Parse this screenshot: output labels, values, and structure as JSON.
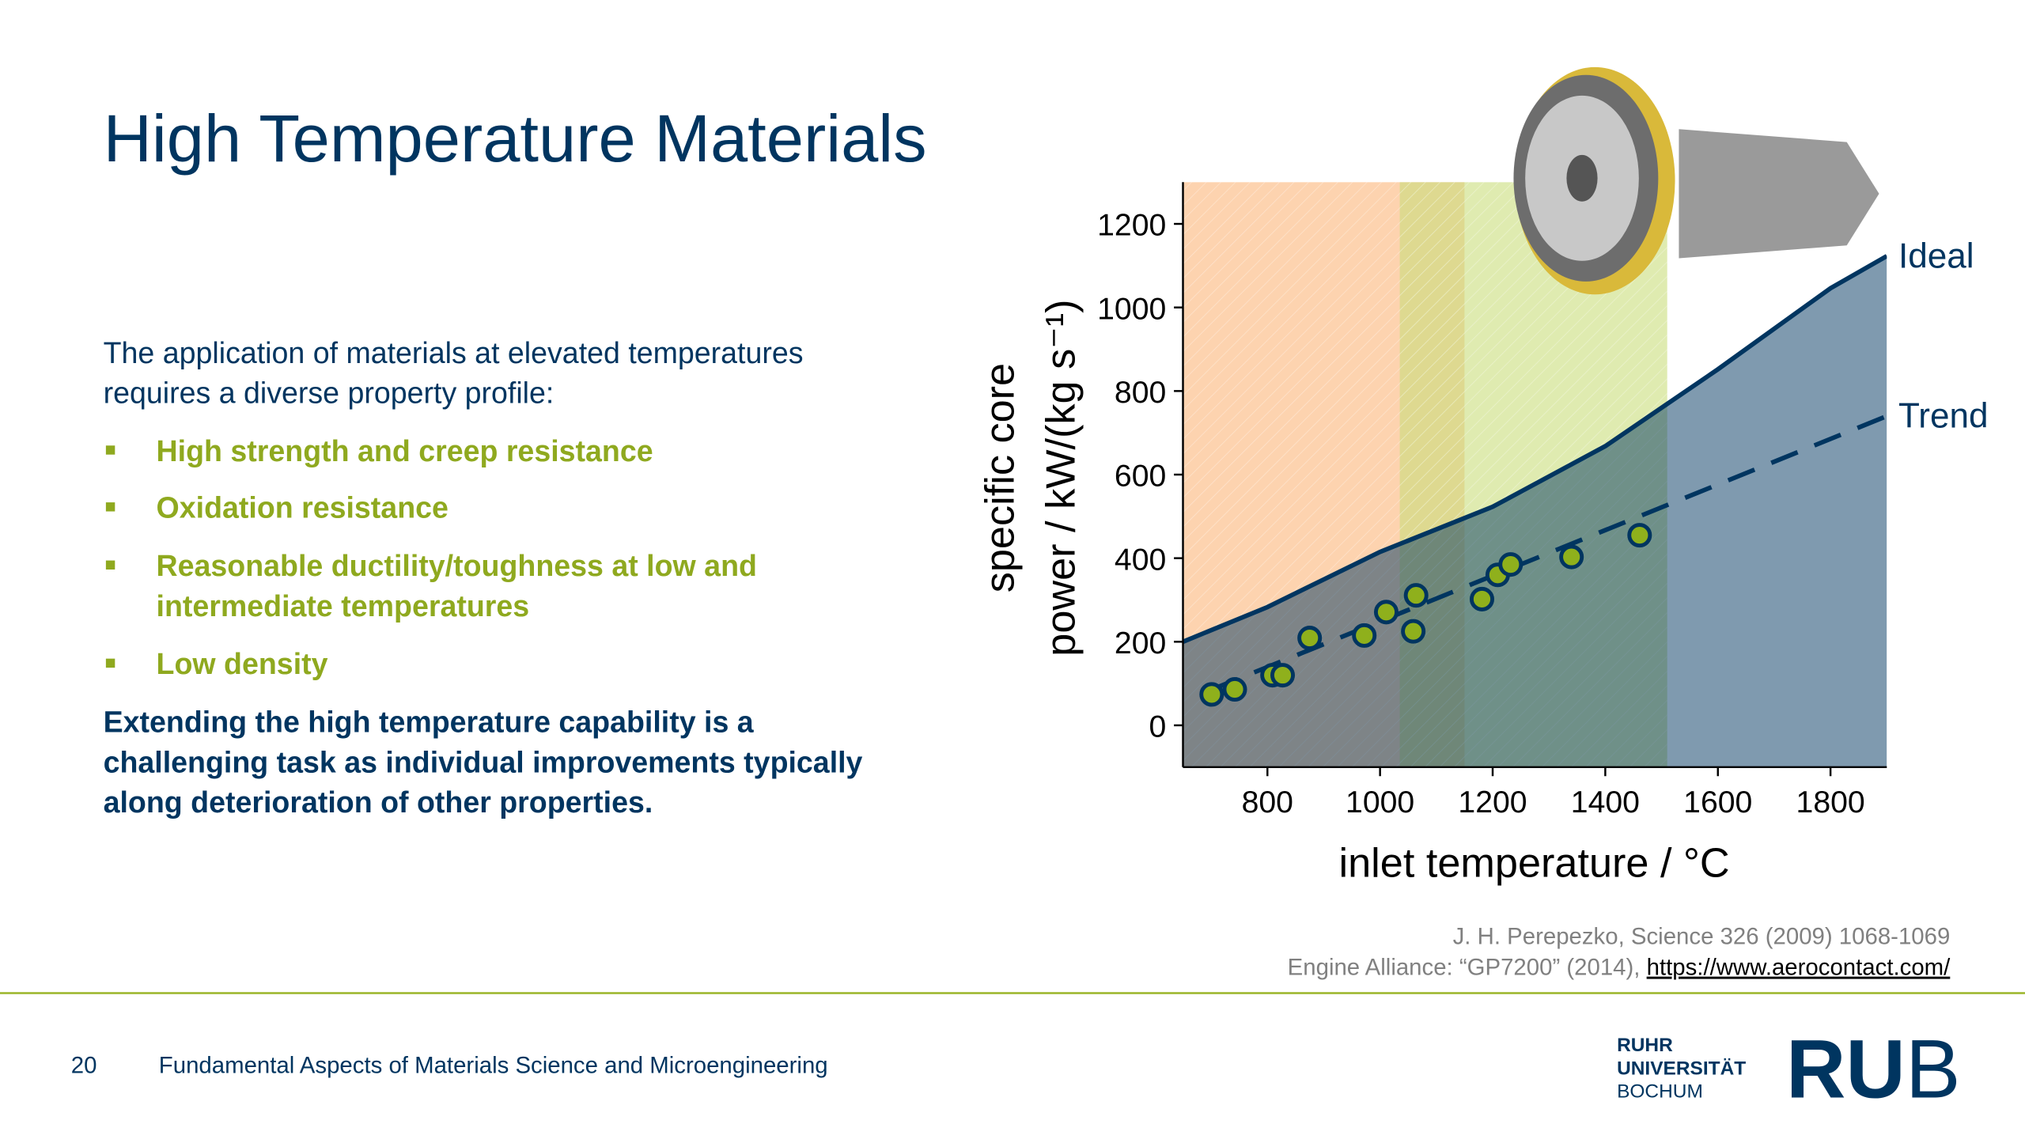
{
  "title": "High Temperature Materials",
  "intro": [
    "The application of materials at elevated temperatures",
    "requires a diverse property profile:"
  ],
  "bullets": [
    [
      "High strength and creep resistance"
    ],
    [
      "Oxidation resistance"
    ],
    [
      "Reasonable ductility/toughness at low and",
      "intermediate temperatures"
    ],
    [
      "Low density"
    ]
  ],
  "conclusion": [
    "Extending the high temperature capability is a",
    "challenging task as individual improvements typically",
    "along deterioration of other properties."
  ],
  "chart_data": {
    "type": "scatter",
    "x_label": "inlet temperature / °C",
    "y_label": [
      "specific core",
      "power / kW/(kg s⁻¹)"
    ],
    "xlim": [
      650,
      1900
    ],
    "ylim": [
      -100,
      1300
    ],
    "xticks": [
      800,
      1000,
      1200,
      1400,
      1600,
      1800
    ],
    "yticks": [
      0,
      200,
      400,
      600,
      800,
      1000,
      1200
    ],
    "regions": [
      {
        "x": [
          650,
          1150
        ],
        "color": "#fbb57a"
      },
      {
        "x": [
          1035,
          1510
        ],
        "color": "#c9de7c"
      }
    ],
    "series": [
      {
        "name": "Ideal",
        "color": "#003560",
        "style": "solid",
        "fill": true,
        "x": [
          650,
          800,
          1000,
          1200,
          1400,
          1600,
          1800,
          1900
        ],
        "values": [
          200,
          283,
          415,
          523,
          668,
          852,
          1046,
          1123
        ]
      },
      {
        "name": "Trend",
        "color": "#003560",
        "style": "dashed",
        "fill": false,
        "x": [
          700,
          1900
        ],
        "values": [
          85,
          740
        ]
      }
    ],
    "points": {
      "color": "#8fb01c",
      "edge": "#003560",
      "x": [
        701,
        742,
        809,
        827,
        875,
        972,
        1011,
        1059,
        1064,
        1181,
        1209,
        1232,
        1340,
        1461
      ],
      "values": [
        74,
        86,
        120,
        120,
        209,
        215,
        271,
        225,
        311,
        302,
        360,
        385,
        403,
        455
      ]
    }
  },
  "citations": {
    "line1": "J. H. Perepezko, Science 326 (2009) 1068-1069",
    "line2": "Engine Alliance: “GP7200” (2014), ",
    "link": "https://www.aerocontact.com/"
  },
  "footer": {
    "page": "20",
    "course": "Fundamental Aspects of Materials Science and Microengineering"
  },
  "logo": {
    "lines": [
      "RUHR",
      "UNIVERSITÄT",
      "BOCHUM"
    ],
    "bold": "RU",
    "light": "B"
  }
}
